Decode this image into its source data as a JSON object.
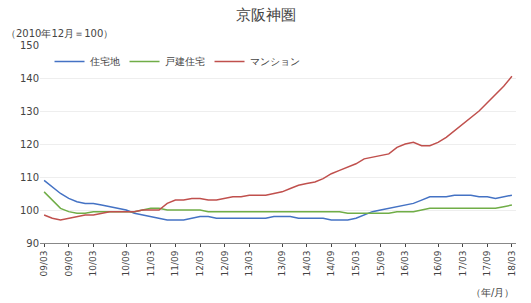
{
  "chart_data": {
    "type": "line",
    "title": "京阪神圏",
    "ylabel": "（2010年12月＝100）",
    "xlabel": "（年/月）",
    "categories": [
      "09/03",
      null,
      null,
      "09/09",
      null,
      null,
      "10/03",
      null,
      null,
      null,
      "10/09",
      null,
      null,
      "11/03",
      null,
      null,
      "11/09",
      null,
      null,
      "12/03",
      null,
      null,
      "12/09",
      null,
      null,
      "13/03",
      null,
      null,
      null,
      "13/09",
      null,
      null,
      "14/03",
      null,
      null,
      "14/09",
      null,
      null,
      "15/03",
      null,
      null,
      "15/09",
      null,
      null,
      "16/03",
      null,
      null,
      null,
      "16/09",
      null,
      null,
      "17/03",
      null,
      null,
      "17/09",
      null,
      null,
      "18/03"
    ],
    "series": [
      {
        "name": "住宅地",
        "color": "#4472C4",
        "values": [
          109.0,
          107.0,
          105.0,
          103.5,
          102.5,
          102.0,
          102.0,
          101.5,
          101.0,
          100.5,
          100.0,
          99.0,
          98.5,
          98.0,
          97.5,
          97.0,
          97.0,
          97.0,
          97.5,
          98.0,
          98.0,
          97.5,
          97.5,
          97.5,
          97.5,
          97.5,
          97.5,
          97.5,
          98.0,
          98.0,
          98.0,
          97.5,
          97.5,
          97.5,
          97.5,
          97.0,
          97.0,
          97.0,
          97.5,
          98.5,
          99.5,
          100.0,
          100.5,
          101.0,
          101.5,
          102.0,
          103.0,
          104.0,
          104.0,
          104.0,
          104.5,
          104.5,
          104.5,
          104.0,
          104.0,
          103.5,
          104.0,
          104.5
        ]
      },
      {
        "name": "戸建住宅",
        "color": "#70AD47",
        "values": [
          105.5,
          103.0,
          100.5,
          99.5,
          99.0,
          99.0,
          99.5,
          99.5,
          99.5,
          99.5,
          99.5,
          99.5,
          100.0,
          100.5,
          100.5,
          100.0,
          100.0,
          100.0,
          100.0,
          100.0,
          99.5,
          99.5,
          99.5,
          99.5,
          99.5,
          99.5,
          99.5,
          99.5,
          99.5,
          99.5,
          99.5,
          99.5,
          99.5,
          99.5,
          99.5,
          99.5,
          99.5,
          99.0,
          99.0,
          99.0,
          99.0,
          99.0,
          99.0,
          99.5,
          99.5,
          99.5,
          100.0,
          100.5,
          100.5,
          100.5,
          100.5,
          100.5,
          100.5,
          100.5,
          100.5,
          100.5,
          101.0,
          101.5
        ]
      },
      {
        "name": "マンション",
        "color": "#C0504D",
        "values": [
          98.5,
          97.5,
          97.0,
          97.5,
          98.0,
          98.5,
          98.5,
          99.0,
          99.5,
          99.5,
          99.5,
          99.5,
          100.0,
          100.0,
          100.0,
          102.0,
          103.0,
          103.0,
          103.5,
          103.5,
          103.0,
          103.0,
          103.5,
          104.0,
          104.0,
          104.5,
          104.5,
          104.5,
          105.0,
          105.5,
          106.5,
          107.5,
          108.0,
          108.5,
          109.5,
          111.0,
          112.0,
          113.0,
          114.0,
          115.5,
          116.0,
          116.5,
          117.0,
          119.0,
          120.0,
          120.5,
          119.5,
          119.5,
          120.5,
          122.0,
          124.0,
          126.0,
          128.0,
          130.0,
          132.5,
          135.0,
          137.5,
          140.5
        ]
      }
    ],
    "ylim": [
      90,
      150
    ],
    "yticks": [
      90,
      100,
      110,
      120,
      130,
      140,
      150
    ],
    "grid": true,
    "legend": "upper left"
  }
}
